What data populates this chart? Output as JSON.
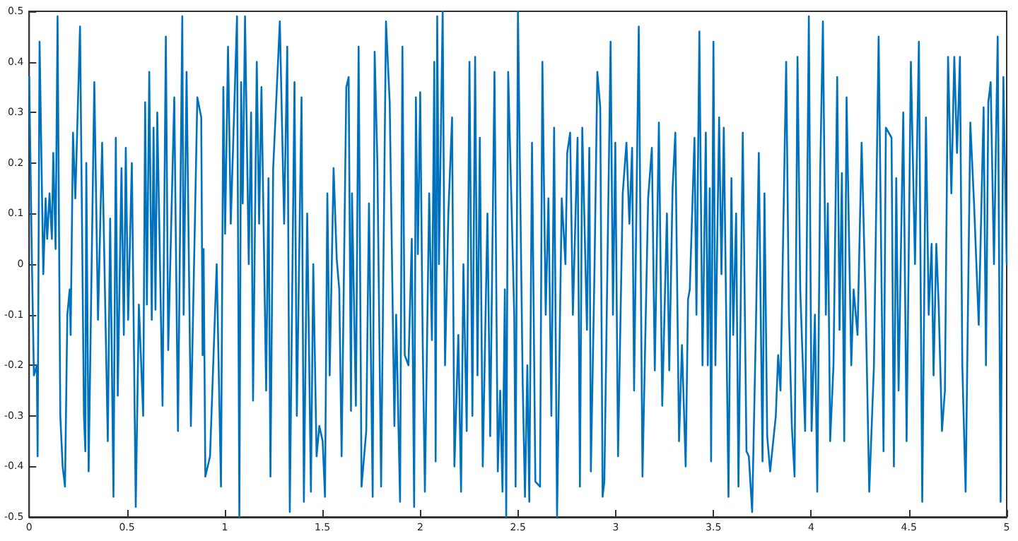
{
  "chart_data": {
    "type": "line",
    "xlim": [
      0,
      5
    ],
    "xticks": [
      0,
      0.5,
      1,
      1.5,
      2,
      2.5,
      3,
      3.5,
      4,
      4.5,
      5
    ],
    "ylim": [
      -0.5,
      0.5
    ],
    "yticks": [
      -0.5,
      -0.4,
      -0.3,
      -0.2,
      -0.1,
      0,
      0.1,
      0.2,
      0.3,
      0.4,
      0.5
    ],
    "grid": false,
    "marker": "none",
    "line_style": "solid",
    "series": [
      {
        "color": "#0072bd",
        "x": [
          0,
          0.014,
          0.024,
          0.039,
          0.043,
          0.053,
          0.072,
          0.084,
          0.092,
          0.104,
          0.116,
          0.123,
          0.135,
          0.145,
          0.159,
          0.171,
          0.183,
          0.195,
          0.207,
          0.212,
          0.224,
          0.236,
          0.26,
          0.28,
          0.287,
          0.292,
          0.304,
          0.333,
          0.352,
          0.373,
          0.402,
          0.414,
          0.431,
          0.443,
          0.453,
          0.472,
          0.484,
          0.494,
          0.506,
          0.525,
          0.545,
          0.561,
          0.583,
          0.593,
          0.602,
          0.614,
          0.627,
          0.636,
          0.646,
          0.655,
          0.682,
          0.699,
          0.711,
          0.742,
          0.761,
          0.783,
          0.79,
          0.805,
          0.827,
          0.86,
          0.88,
          0.887,
          0.892,
          0.901,
          0.925,
          0.959,
          0.981,
          0.993,
          1.002,
          1.017,
          1.031,
          1.063,
          1.075,
          1.084,
          1.092,
          1.104,
          1.123,
          1.135,
          1.145,
          1.164,
          1.176,
          1.188,
          1.212,
          1.224,
          1.234,
          1.248,
          1.282,
          1.304,
          1.32,
          1.333,
          1.357,
          1.369,
          1.393,
          1.405,
          1.422,
          1.441,
          1.453,
          1.47,
          1.484,
          1.501,
          1.513,
          1.525,
          1.537,
          1.557,
          1.573,
          1.586,
          1.598,
          1.622,
          1.634,
          1.646,
          1.651,
          1.671,
          1.685,
          1.7,
          1.724,
          1.738,
          1.757,
          1.767,
          1.781,
          1.8,
          1.825,
          1.844,
          1.868,
          1.877,
          1.897,
          1.909,
          1.921,
          1.94,
          1.957,
          1.969,
          1.978,
          1.988,
          2,
          2.012,
          2.024,
          2.046,
          2.06,
          2.072,
          2.079,
          2.087,
          2.096,
          2.115,
          2.127,
          2.144,
          2.163,
          2.175,
          2.195,
          2.209,
          2.221,
          2.238,
          2.252,
          2.267,
          2.281,
          2.293,
          2.305,
          2.32,
          2.344,
          2.358,
          2.38,
          2.397,
          2.409,
          2.421,
          2.433,
          2.44,
          2.45,
          2.481,
          2.488,
          2.5,
          2.524,
          2.536,
          2.548,
          2.558,
          2.572,
          2.589,
          2.613,
          2.625,
          2.642,
          2.656,
          2.671,
          2.685,
          2.7,
          2.724,
          2.743,
          2.752,
          2.767,
          2.781,
          2.805,
          2.817,
          2.829,
          2.853,
          2.865,
          2.873,
          2.892,
          2.906,
          2.921,
          2.933,
          2.942,
          2.974,
          2.986,
          2.998,
          3.012,
          3.036,
          3.055,
          3.07,
          3.084,
          3.094,
          3.118,
          3.137,
          3.166,
          3.185,
          3.2,
          3.221,
          3.238,
          3.262,
          3.274,
          3.291,
          3.305,
          3.324,
          3.339,
          3.358,
          3.37,
          3.379,
          3.403,
          3.413,
          3.428,
          3.444,
          3.461,
          3.471,
          3.481,
          3.488,
          3.5,
          3.51,
          3.529,
          3.541,
          3.553,
          3.577,
          3.592,
          3.601,
          3.616,
          3.628,
          3.65,
          3.669,
          3.681,
          3.698,
          3.717,
          3.732,
          3.751,
          3.761,
          3.775,
          3.79,
          3.819,
          3.831,
          3.843,
          3.872,
          3.886,
          3.901,
          3.915,
          3.93,
          3.944,
          3.969,
          3.988,
          4.002,
          4.019,
          4.031,
          4.046,
          4.06,
          4.075,
          4.085,
          4.097,
          4.114,
          4.133,
          4.145,
          4.157,
          4.169,
          4.181,
          4.205,
          4.217,
          4.237,
          4.258,
          4.278,
          4.297,
          4.321,
          4.345,
          4.37,
          4.382,
          4.411,
          4.423,
          4.435,
          4.447,
          4.471,
          4.488,
          4.51,
          4.531,
          4.551,
          4.568,
          4.587,
          4.601,
          4.616,
          4.626,
          4.64,
          4.652,
          4.669,
          4.684,
          4.7,
          4.717,
          4.732,
          4.746,
          4.761,
          4.773,
          4.79,
          4.814,
          4.833,
          4.857,
          4.882,
          4.894,
          4.906,
          4.918,
          4.935,
          4.954,
          4.969,
          4.983,
          5
        ],
        "values": [
          0.37,
          0,
          -0.22,
          -0.2,
          -0.38,
          0.44,
          -0.02,
          0.13,
          0.05,
          0.14,
          0.05,
          0.22,
          0.03,
          0.49,
          -0.3,
          -0.4,
          -0.44,
          -0.1,
          -0.05,
          -0.14,
          0.26,
          0.13,
          0.47,
          -0.3,
          -0.37,
          0.2,
          -0.41,
          0.36,
          -0.11,
          0.24,
          -0.35,
          0.09,
          -0.46,
          0.25,
          -0.26,
          0.19,
          -0.14,
          0.23,
          -0.11,
          0.2,
          -0.48,
          -0.08,
          -0.3,
          0.32,
          -0.08,
          0.38,
          -0.11,
          0.27,
          -0.09,
          0.3,
          -0.28,
          0.45,
          -0.17,
          0.33,
          -0.33,
          0.49,
          -0.1,
          0.38,
          -0.32,
          0.33,
          0.29,
          -0.18,
          0.03,
          -0.42,
          -0.38,
          0,
          -0.44,
          0.35,
          0.06,
          0.43,
          0.08,
          0.49,
          -0.5,
          0.36,
          0.12,
          0.49,
          0,
          0.3,
          -0.27,
          0.4,
          0.08,
          0.35,
          -0.25,
          0.17,
          -0.42,
          0.19,
          0.48,
          0.08,
          0.43,
          -0.49,
          0.36,
          -0.3,
          0.33,
          -0.47,
          0.1,
          -0.45,
          0,
          -0.38,
          -0.32,
          -0.35,
          -0.46,
          0.14,
          -0.22,
          0.19,
          0.01,
          -0.05,
          -0.38,
          0.35,
          0.37,
          -0.29,
          0.14,
          -0.28,
          0.43,
          -0.44,
          -0.33,
          0.12,
          -0.46,
          0.42,
          0.2,
          -0.44,
          0.48,
          0.32,
          -0.32,
          -0.1,
          -0.47,
          0.43,
          -0.18,
          -0.2,
          0.05,
          -0.48,
          0.33,
          0.02,
          0.34,
          -0.13,
          -0.45,
          0.14,
          -0.15,
          0.4,
          -0.39,
          0.49,
          0,
          0.5,
          -0.2,
          0.1,
          0.29,
          -0.4,
          -0.14,
          -0.45,
          0,
          -0.33,
          0.4,
          -0.3,
          0.41,
          -0.22,
          0.25,
          -0.4,
          0.1,
          -0.34,
          0.38,
          -0.41,
          -0.25,
          -0.45,
          -0.05,
          -0.5,
          0.38,
          -0.1,
          -0.44,
          0.5,
          -0.23,
          -0.46,
          -0.2,
          -0.47,
          0.24,
          -0.43,
          -0.44,
          0.4,
          -0.1,
          0.13,
          -0.3,
          0.27,
          -0.5,
          0.13,
          0,
          0.22,
          0.26,
          -0.1,
          0.25,
          -0.44,
          0.27,
          -0.13,
          0.23,
          -0.41,
          0,
          0.38,
          0.31,
          -0.46,
          -0.43,
          0.44,
          -0.1,
          0.24,
          -0.38,
          0.14,
          0.24,
          0.08,
          0.23,
          -0.25,
          0.47,
          -0.42,
          0.13,
          0.23,
          -0.21,
          0.28,
          -0.28,
          0.1,
          -0.21,
          0.15,
          0.26,
          -0.35,
          -0.16,
          -0.4,
          -0.07,
          -0.05,
          0.25,
          -0.1,
          0.46,
          -0.2,
          0.26,
          -0.2,
          0.15,
          -0.39,
          0.44,
          -0.2,
          0.29,
          -0.02,
          0.27,
          -0.46,
          0.17,
          -0.14,
          0.1,
          -0.44,
          0.26,
          -0.37,
          -0.38,
          -0.49,
          -0.13,
          0.22,
          -0.39,
          0.14,
          -0.34,
          -0.41,
          -0.3,
          -0.18,
          -0.25,
          0.4,
          -0.1,
          -0.32,
          -0.42,
          0.41,
          -0.05,
          -0.33,
          0.49,
          -0.33,
          -0.1,
          -0.45,
          0.18,
          0.48,
          -0.1,
          0.12,
          -0.35,
          -0.2,
          0.37,
          -0.13,
          0.18,
          -0.35,
          0.33,
          -0.2,
          -0.05,
          -0.14,
          0.24,
          -0.07,
          -0.45,
          -0.2,
          0.45,
          -0.37,
          0.27,
          0.25,
          -0.4,
          0.17,
          -0.25,
          0.3,
          -0.35,
          0.4,
          0,
          0.44,
          -0.47,
          0.29,
          -0.1,
          0.04,
          -0.22,
          0.04,
          -0.08,
          -0.33,
          -0.25,
          0.41,
          0.14,
          0.41,
          0.22,
          0.41,
          -0.2,
          -0.45,
          0.28,
          0.12,
          -0.12,
          0.31,
          -0.2,
          0.32,
          0.36,
          0,
          0.45,
          -0.47,
          0.37,
          0
        ]
      }
    ]
  }
}
